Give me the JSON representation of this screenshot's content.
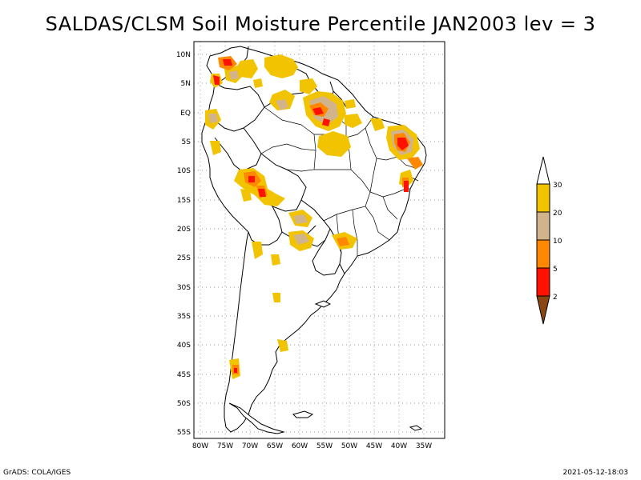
{
  "title": "SALDAS/CLSM Soil Moisture Percentile JAN2003 lev = 3",
  "footer_left": "GrADS: COLA/IGES",
  "footer_right": "2021-05-12-18:03",
  "lat_labels": [
    "10N",
    "5N",
    "EQ",
    "5S",
    "10S",
    "15S",
    "20S",
    "25S",
    "30S",
    "35S",
    "40S",
    "45S",
    "50S",
    "55S"
  ],
  "lon_labels": [
    "80W",
    "75W",
    "70W",
    "65W",
    "60W",
    "55W",
    "50W",
    "45W",
    "40W",
    "35W"
  ],
  "legend": {
    "labels": [
      "30",
      "20",
      "10",
      "5",
      "2"
    ],
    "colors": {
      "above30": "#ffffff",
      "c20_30": "#f2c300",
      "c10_20": "#d2b48c",
      "c5_10": "#ff8800",
      "c2_5": "#ff1100",
      "below2": "#8b4513"
    }
  }
}
